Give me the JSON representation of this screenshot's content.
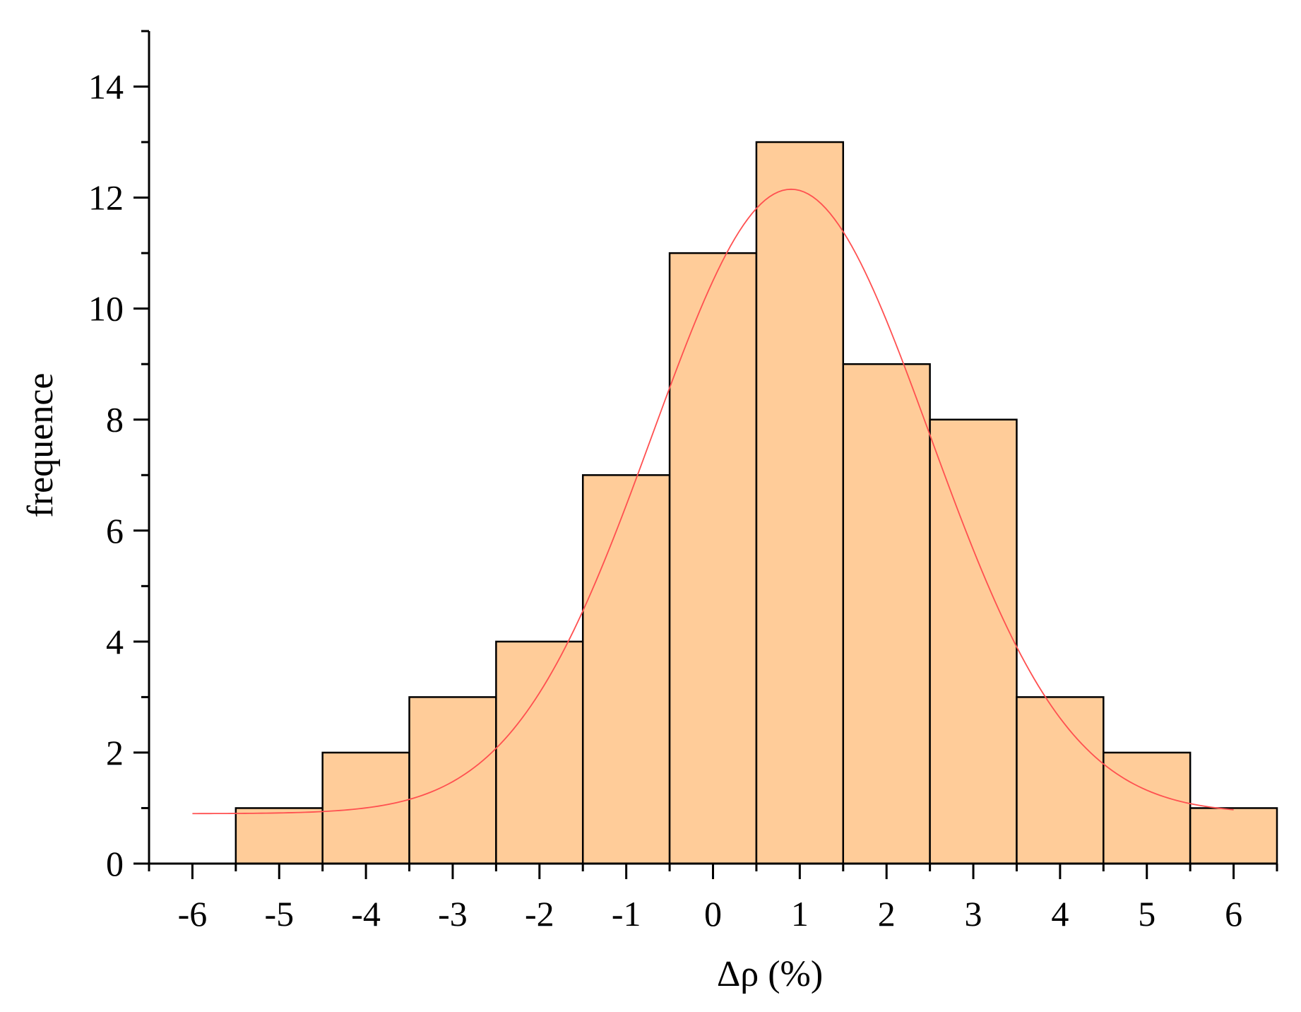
{
  "chart_data": {
    "type": "bar",
    "title": "",
    "xlabel": "Δρ (%)",
    "ylabel": "frequence",
    "xlim": [
      -6.5,
      6.5
    ],
    "ylim": [
      0,
      15
    ],
    "xticks": [
      -6,
      -5,
      -4,
      -3,
      -2,
      -1,
      0,
      1,
      2,
      3,
      4,
      5,
      6
    ],
    "xtick_labels": [
      "-6",
      "-5",
      "-4",
      "-3",
      "-2",
      "-1",
      "0",
      "1",
      "2",
      "3",
      "4",
      "5",
      "6"
    ],
    "yticks": [
      0,
      2,
      4,
      6,
      8,
      10,
      12,
      14
    ],
    "ytick_labels": [
      "0",
      "2",
      "4",
      "6",
      "8",
      "10",
      "12",
      "14"
    ],
    "y_minor_step": 1,
    "x_minor_step": 0.5,
    "bins": [
      {
        "x0": -5.5,
        "x1": -4.5,
        "count": 1
      },
      {
        "x0": -4.5,
        "x1": -3.5,
        "count": 2
      },
      {
        "x0": -3.5,
        "x1": -2.5,
        "count": 3
      },
      {
        "x0": -2.5,
        "x1": -1.5,
        "count": 4
      },
      {
        "x0": -1.5,
        "x1": -0.5,
        "count": 7
      },
      {
        "x0": -0.5,
        "x1": 0.5,
        "count": 11
      },
      {
        "x0": 0.5,
        "x1": 1.5,
        "count": 13
      },
      {
        "x0": 1.5,
        "x1": 2.5,
        "count": 9
      },
      {
        "x0": 2.5,
        "x1": 3.5,
        "count": 8
      },
      {
        "x0": 3.5,
        "x1": 4.5,
        "count": 3
      },
      {
        "x0": 4.5,
        "x1": 5.5,
        "count": 2
      },
      {
        "x0": 5.5,
        "x1": 6.5,
        "count": 1
      }
    ],
    "fit_curve": {
      "type": "gaussian",
      "baseline": 0.9,
      "amplitude": 11.25,
      "center": 0.9,
      "sigma": 1.6,
      "x_range": [
        -6,
        6
      ]
    },
    "grid": false,
    "legend": "none",
    "colors": {
      "bar_fill": "#ffcc99",
      "bar_edge": "#000000",
      "fit_line": "#ff5050"
    }
  }
}
